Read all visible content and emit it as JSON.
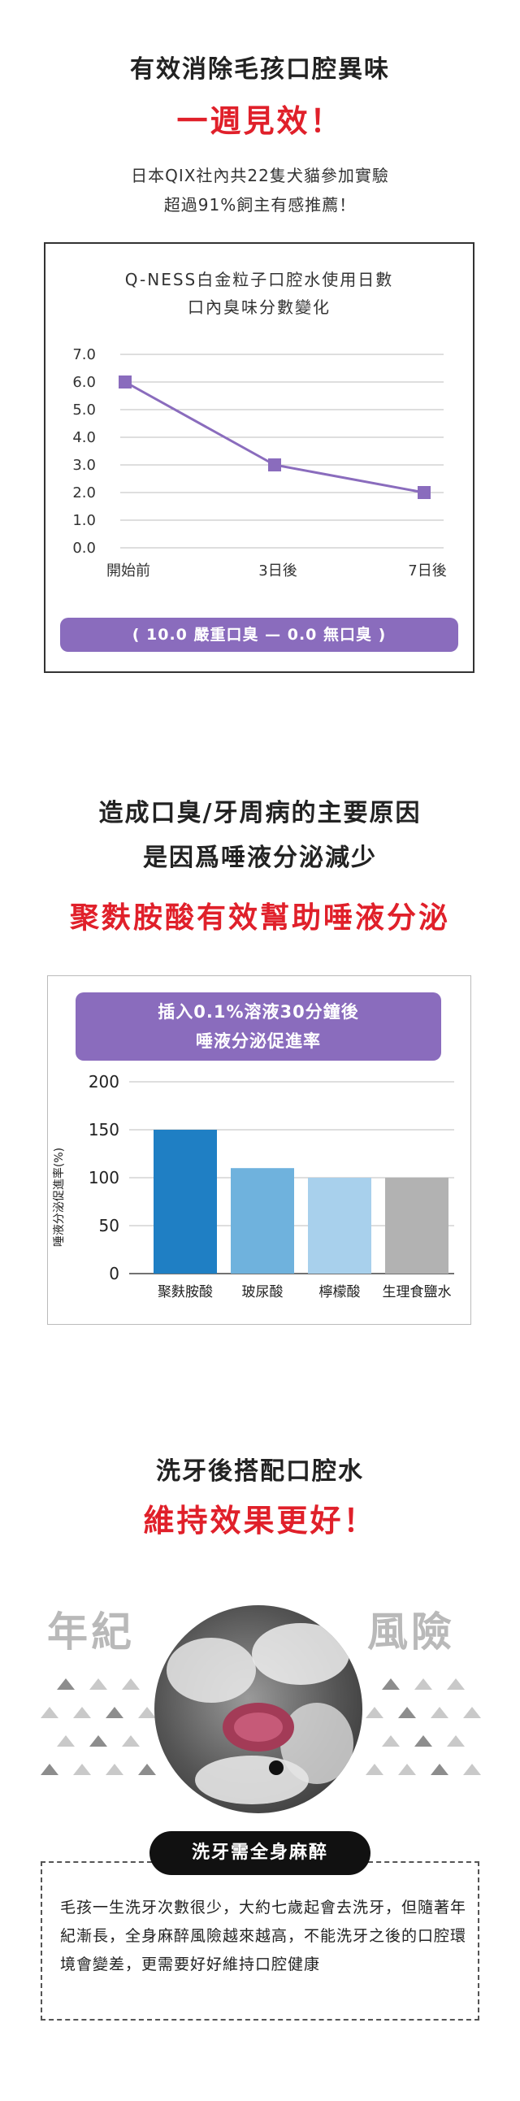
{
  "section1": {
    "heading": "有效消除毛孩口腔異味",
    "headline": "一週見效！",
    "desc_line1": "日本QIX社內共22隻犬貓參加實驗",
    "desc_line2": "超過91%飼主有感推薦！",
    "chart_title_line1": "Q-NESS白金粒子口腔水使用日數",
    "chart_title_line2": "口內臭味分數變化",
    "legend_pill": "( 10.0 嚴重口臭 — 0.0 無口臭 )"
  },
  "section2": {
    "heading_line1": "造成口臭/牙周病的主要原因",
    "heading_line2": "是因爲唾液分泌減少",
    "headline": "聚麩胺酸有效幫助唾液分泌",
    "chart_header_line1": "插入0.1%溶液30分鐘後",
    "chart_header_line2": "唾液分泌促進率"
  },
  "section3": {
    "heading": "洗牙後搭配口腔水",
    "headline": "維持效果更好！",
    "left_word": "年紀",
    "right_word": "風險",
    "pill_label": "洗牙需全身麻醉",
    "paragraph": "毛孩一生洗牙次數很少，大約七歲起會去洗牙，但隨著年紀漸長，全身麻醉風險越來越高，不能洗牙之後的口腔環境會變差，更需要好好維持口腔健康"
  },
  "chart_data": [
    {
      "type": "line",
      "title": "Q-NESS白金粒子口腔水使用日數 口內臭味分數變化",
      "categories": [
        "開始前",
        "3日後",
        "7日後"
      ],
      "series": [
        {
          "values": [
            6.0,
            3.0,
            2.0
          ]
        }
      ],
      "ylim": [
        0,
        7
      ],
      "yticks": [
        "0.0",
        "1.0",
        "2.0",
        "3.0",
        "4.0",
        "5.0",
        "6.0",
        "7.0"
      ],
      "grid": true,
      "color": "#8a6cbd"
    },
    {
      "type": "bar",
      "title": "插入0.1%溶液30分鐘後 唾液分泌促進率",
      "categories": [
        "聚麩胺酸",
        "玻尿酸",
        "檸檬酸",
        "生理食鹽水"
      ],
      "values": [
        150,
        110,
        100,
        100
      ],
      "ylabel": "唾液分泌促進率(%)",
      "ylim": [
        0,
        200
      ],
      "yticks": [
        "0",
        "50",
        "100",
        "150",
        "200"
      ],
      "colors": [
        "#1f7fc4",
        "#6fb2dd",
        "#a8d0ec",
        "#b2b2b2"
      ],
      "grid": true
    }
  ]
}
